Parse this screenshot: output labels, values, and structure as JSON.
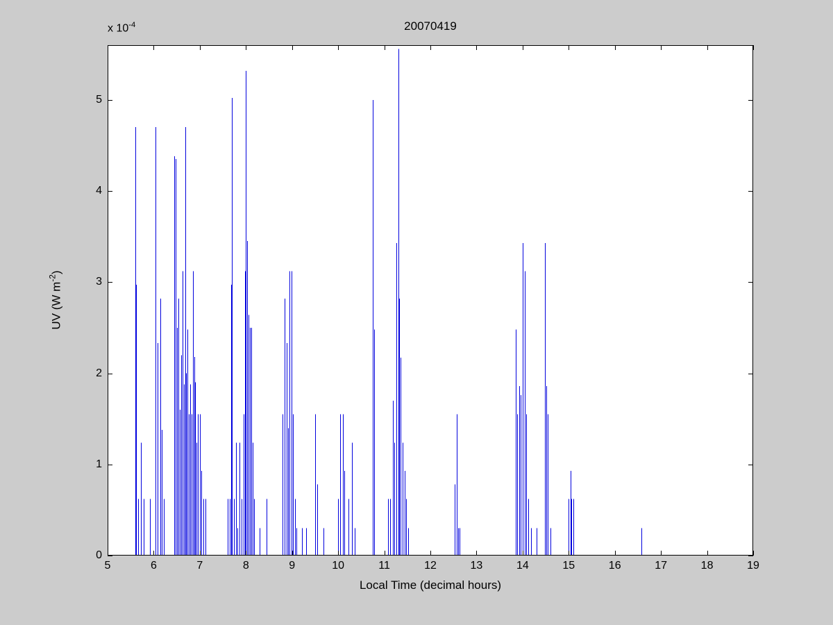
{
  "chart_data": {
    "type": "stem",
    "title": "20070419",
    "xlabel": "Local Time (decimal hours)",
    "ylabel_parts": {
      "prefix": "UV (W m",
      "sup": "-2",
      "suffix": ")"
    },
    "y_exponent": {
      "base": "x 10",
      "exp": "-4"
    },
    "xlim": [
      5,
      19
    ],
    "ylim": [
      0,
      5.6
    ],
    "y_scale": "values are in units of 1e-4 W m^-2",
    "x_ticks": [
      5,
      6,
      7,
      8,
      9,
      10,
      11,
      12,
      13,
      14,
      15,
      16,
      17,
      18,
      19
    ],
    "y_ticks": [
      0,
      1,
      2,
      3,
      4,
      5
    ],
    "colors": {
      "spike": "#0000dd",
      "axis": "#000000",
      "plot_bg": "#ffffff",
      "figure_bg": "#cccccc"
    },
    "points": [
      [
        5.6,
        4.7
      ],
      [
        5.61,
        2.97
      ],
      [
        5.66,
        0.62
      ],
      [
        5.72,
        1.24
      ],
      [
        5.78,
        0.62
      ],
      [
        5.92,
        0.62
      ],
      [
        6.04,
        4.7
      ],
      [
        6.08,
        2.33
      ],
      [
        6.14,
        2.82
      ],
      [
        6.18,
        1.38
      ],
      [
        6.22,
        0.62
      ],
      [
        6.44,
        4.38
      ],
      [
        6.47,
        4.35
      ],
      [
        6.5,
        2.5
      ],
      [
        6.53,
        2.82
      ],
      [
        6.56,
        1.6
      ],
      [
        6.6,
        2.2
      ],
      [
        6.62,
        3.12
      ],
      [
        6.65,
        1.88
      ],
      [
        6.68,
        4.7
      ],
      [
        6.7,
        2.0
      ],
      [
        6.73,
        2.48
      ],
      [
        6.76,
        1.55
      ],
      [
        6.79,
        1.88
      ],
      [
        6.82,
        1.55
      ],
      [
        6.85,
        3.12
      ],
      [
        6.88,
        2.18
      ],
      [
        6.9,
        1.9
      ],
      [
        6.93,
        1.24
      ],
      [
        6.96,
        1.55
      ],
      [
        7.0,
        1.55
      ],
      [
        7.03,
        0.93
      ],
      [
        7.08,
        0.62
      ],
      [
        7.13,
        0.62
      ],
      [
        7.6,
        0.62
      ],
      [
        7.65,
        0.62
      ],
      [
        7.68,
        2.97
      ],
      [
        7.7,
        5.02
      ],
      [
        7.74,
        0.62
      ],
      [
        7.78,
        1.24
      ],
      [
        7.82,
        0.3
      ],
      [
        7.86,
        1.24
      ],
      [
        7.9,
        0.62
      ],
      [
        7.95,
        1.55
      ],
      [
        7.98,
        3.12
      ],
      [
        8.0,
        5.32
      ],
      [
        8.03,
        3.45
      ],
      [
        8.06,
        2.64
      ],
      [
        8.09,
        2.5
      ],
      [
        8.12,
        2.5
      ],
      [
        8.15,
        1.24
      ],
      [
        8.18,
        0.62
      ],
      [
        8.3,
        0.3
      ],
      [
        8.45,
        0.62
      ],
      [
        8.8,
        1.55
      ],
      [
        8.84,
        2.82
      ],
      [
        8.88,
        2.33
      ],
      [
        8.92,
        1.4
      ],
      [
        8.95,
        3.12
      ],
      [
        8.99,
        3.12
      ],
      [
        9.02,
        1.55
      ],
      [
        9.06,
        0.62
      ],
      [
        9.1,
        0.3
      ],
      [
        9.22,
        0.3
      ],
      [
        9.3,
        0.3
      ],
      [
        9.5,
        1.55
      ],
      [
        9.55,
        0.78
      ],
      [
        9.68,
        0.3
      ],
      [
        10.0,
        0.62
      ],
      [
        10.05,
        1.55
      ],
      [
        10.1,
        1.55
      ],
      [
        10.14,
        0.93
      ],
      [
        10.22,
        0.62
      ],
      [
        10.3,
        1.24
      ],
      [
        10.36,
        0.3
      ],
      [
        10.75,
        5.0
      ],
      [
        10.78,
        2.48
      ],
      [
        11.08,
        0.62
      ],
      [
        11.12,
        0.62
      ],
      [
        11.18,
        1.7
      ],
      [
        11.22,
        1.24
      ],
      [
        11.26,
        3.43
      ],
      [
        11.3,
        5.56
      ],
      [
        11.33,
        2.82
      ],
      [
        11.36,
        2.17
      ],
      [
        11.4,
        1.24
      ],
      [
        11.44,
        0.93
      ],
      [
        11.48,
        0.62
      ],
      [
        11.52,
        0.3
      ],
      [
        12.53,
        0.78
      ],
      [
        12.57,
        1.55
      ],
      [
        12.6,
        0.3
      ],
      [
        12.63,
        0.3
      ],
      [
        13.85,
        2.48
      ],
      [
        13.88,
        1.55
      ],
      [
        13.92,
        1.86
      ],
      [
        13.96,
        1.76
      ],
      [
        14.0,
        3.43
      ],
      [
        14.04,
        3.12
      ],
      [
        14.08,
        1.55
      ],
      [
        14.12,
        0.62
      ],
      [
        14.18,
        0.3
      ],
      [
        14.3,
        0.3
      ],
      [
        14.48,
        3.43
      ],
      [
        14.52,
        1.86
      ],
      [
        14.55,
        1.55
      ],
      [
        14.6,
        0.3
      ],
      [
        15.0,
        0.62
      ],
      [
        15.04,
        0.93
      ],
      [
        15.06,
        0.62
      ],
      [
        15.1,
        0.62
      ],
      [
        16.58,
        0.3
      ]
    ]
  }
}
